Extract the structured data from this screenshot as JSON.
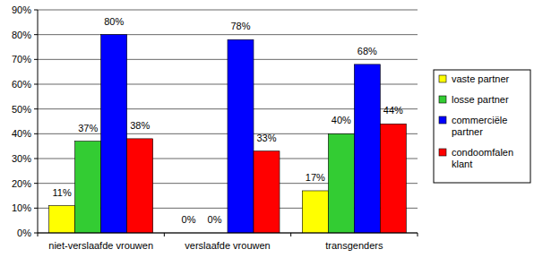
{
  "chart_data": {
    "type": "bar",
    "categories": [
      "niet-verslaafde vrouwen",
      "verslaafde vrouwen",
      "transgenders"
    ],
    "series": [
      {
        "name": "vaste partner",
        "color": "#ffff00",
        "values": [
          11,
          0,
          17
        ],
        "value_labels": [
          "11%",
          "0%",
          "17%"
        ]
      },
      {
        "name": "losse partner",
        "color": "#33cc33",
        "values": [
          37,
          0,
          40
        ],
        "value_labels": [
          "37%",
          "0%",
          "40%"
        ]
      },
      {
        "name": "commerciële partner",
        "color": "#0000ff",
        "values": [
          80,
          78,
          68
        ],
        "value_labels": [
          "80%",
          "78%",
          "68%"
        ]
      },
      {
        "name": "condoomfalen klant",
        "color": "#ff0000",
        "values": [
          38,
          33,
          44
        ],
        "value_labels": [
          "38%",
          "33%",
          "44%"
        ]
      }
    ],
    "ylim": [
      0,
      90
    ],
    "yticks": [
      {
        "value": 0,
        "label": "0%"
      },
      {
        "value": 10,
        "label": "10%"
      },
      {
        "value": 20,
        "label": "20%"
      },
      {
        "value": 30,
        "label": "30%"
      },
      {
        "value": 40,
        "label": "40%"
      },
      {
        "value": 50,
        "label": "50%"
      },
      {
        "value": 60,
        "label": "60%"
      },
      {
        "value": 70,
        "label": "70%"
      },
      {
        "value": 80,
        "label": "80%"
      },
      {
        "value": 90,
        "label": "90%"
      }
    ],
    "grid": true,
    "legend": "right",
    "data_labels": true
  }
}
